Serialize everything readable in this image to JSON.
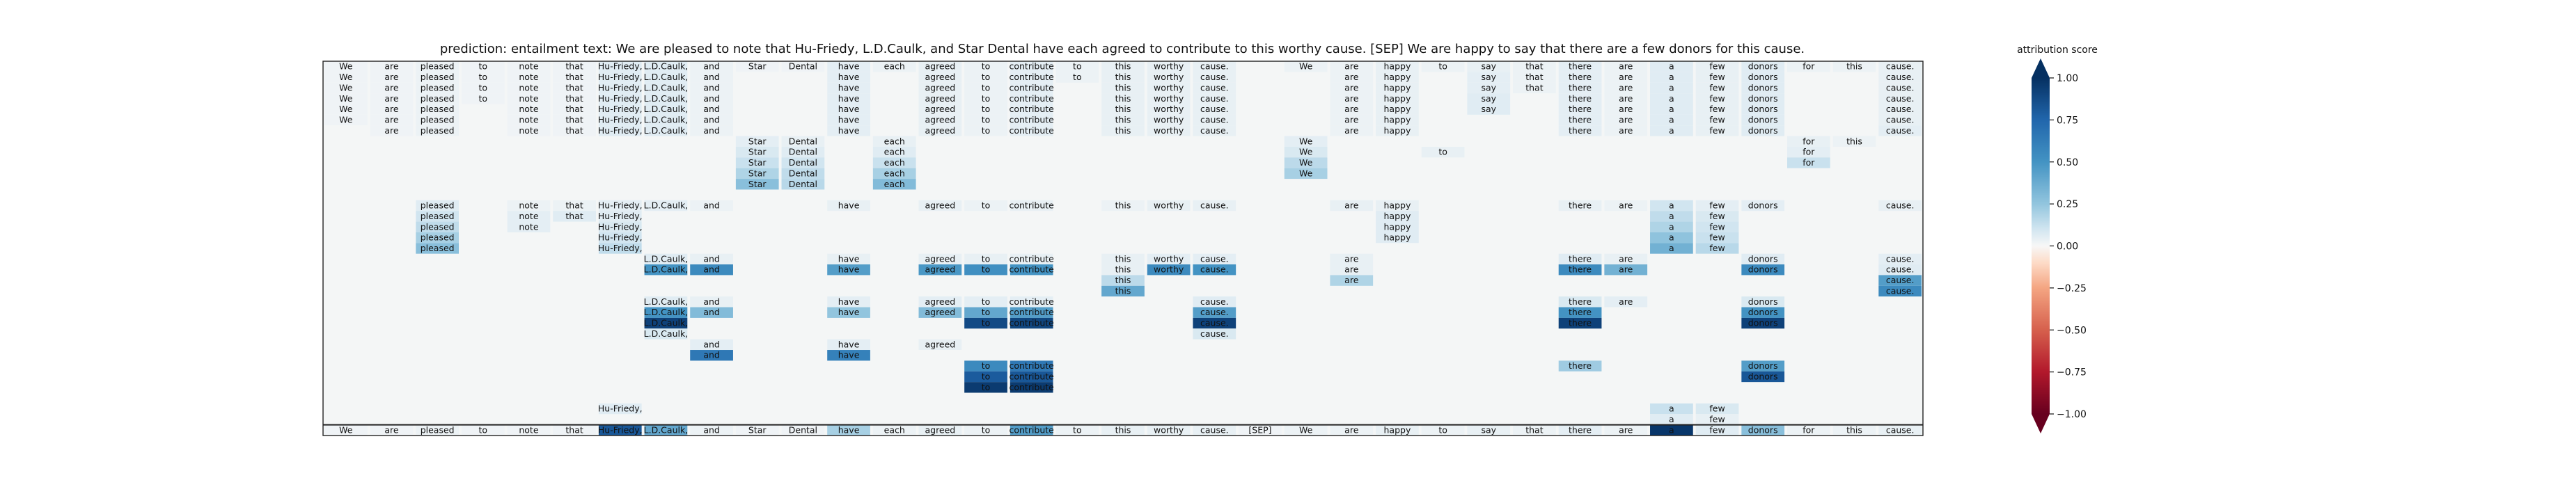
{
  "chart_data": {
    "type": "heatmap",
    "title": "prediction:  entailment     text:  We are pleased to note that Hu-Friedy, L.D.Caulk, and Star Dental have each agreed to contribute to this worthy cause. [SEP] We are happy to say that there are a few donors for this cause.",
    "tokens": [
      "We",
      "are",
      "pleased",
      "to",
      "note",
      "that",
      "Hu-Friedy,",
      "L.D.Caulk,",
      "and",
      "Star",
      "Dental",
      "have",
      "each",
      "agreed",
      "to",
      "contribute",
      "to",
      "this",
      "worthy",
      "cause.",
      "[SEP]",
      "We",
      "are",
      "happy",
      "to",
      "say",
      "that",
      "there",
      "are",
      "a",
      "few",
      "donors",
      "for",
      "this",
      "cause."
    ],
    "rows": [
      {
        "cells": {
          "0": 0.02,
          "1": 0.02,
          "2": 0.03,
          "3": 0.02,
          "4": 0.02,
          "5": 0.02,
          "6": 0.06,
          "7": 0.06,
          "8": 0.03,
          "9": 0.02,
          "10": 0.02,
          "11": 0.05,
          "12": 0.03,
          "13": 0.04,
          "14": 0.03,
          "15": 0.05,
          "16": 0.03,
          "17": 0.04,
          "18": 0.04,
          "19": 0.04,
          "21": 0.03,
          "22": 0.03,
          "23": 0.04,
          "24": 0.03,
          "25": 0.04,
          "26": 0.03,
          "27": 0.05,
          "28": 0.03,
          "29": 0.06,
          "30": 0.04,
          "31": 0.06,
          "32": 0.03,
          "33": 0.03,
          "34": 0.04
        }
      },
      {
        "cells": {
          "0": 0.02,
          "1": 0.02,
          "2": 0.03,
          "3": 0.02,
          "4": 0.02,
          "5": 0.02,
          "6": 0.06,
          "7": 0.06,
          "8": 0.03,
          "11": 0.05,
          "13": 0.04,
          "14": 0.03,
          "15": 0.05,
          "16": 0.03,
          "17": 0.04,
          "18": 0.04,
          "19": 0.04,
          "22": 0.03,
          "23": 0.04,
          "25": 0.05,
          "26": 0.03,
          "27": 0.05,
          "28": 0.03,
          "29": 0.06,
          "30": 0.04,
          "31": 0.06,
          "34": 0.04
        }
      },
      {
        "cells": {
          "0": 0.02,
          "1": 0.02,
          "2": 0.03,
          "3": 0.02,
          "4": 0.02,
          "5": 0.02,
          "6": 0.06,
          "7": 0.06,
          "8": 0.03,
          "11": 0.05,
          "13": 0.04,
          "14": 0.03,
          "15": 0.05,
          "17": 0.04,
          "18": 0.04,
          "19": 0.04,
          "22": 0.03,
          "23": 0.04,
          "25": 0.05,
          "26": 0.03,
          "27": 0.05,
          "28": 0.03,
          "29": 0.06,
          "30": 0.04,
          "31": 0.06,
          "34": 0.04
        }
      },
      {
        "cells": {
          "0": 0.02,
          "1": 0.02,
          "2": 0.03,
          "3": 0.02,
          "4": 0.02,
          "5": 0.02,
          "6": 0.06,
          "7": 0.06,
          "8": 0.03,
          "11": 0.05,
          "13": 0.04,
          "14": 0.03,
          "15": 0.05,
          "17": 0.04,
          "18": 0.04,
          "19": 0.04,
          "22": 0.03,
          "23": 0.04,
          "25": 0.06,
          "27": 0.05,
          "28": 0.03,
          "29": 0.06,
          "30": 0.04,
          "31": 0.06,
          "34": 0.04
        }
      },
      {
        "cells": {
          "0": 0.02,
          "1": 0.02,
          "2": 0.03,
          "4": 0.02,
          "5": 0.02,
          "6": 0.06,
          "7": 0.06,
          "8": 0.03,
          "11": 0.05,
          "13": 0.04,
          "14": 0.03,
          "15": 0.05,
          "17": 0.04,
          "18": 0.04,
          "19": 0.04,
          "22": 0.03,
          "23": 0.04,
          "25": 0.06,
          "27": 0.05,
          "28": 0.03,
          "29": 0.06,
          "30": 0.04,
          "31": 0.06,
          "34": 0.04
        }
      },
      {
        "cells": {
          "0": 0.02,
          "1": 0.02,
          "2": 0.03,
          "4": 0.02,
          "5": 0.02,
          "6": 0.06,
          "7": 0.06,
          "8": 0.03,
          "11": 0.05,
          "13": 0.04,
          "14": 0.03,
          "15": 0.05,
          "17": 0.04,
          "18": 0.04,
          "19": 0.04,
          "22": 0.03,
          "23": 0.04,
          "27": 0.05,
          "28": 0.03,
          "29": 0.06,
          "30": 0.04,
          "31": 0.06,
          "34": 0.04
        }
      },
      {
        "cells": {
          "1": 0.02,
          "2": 0.03,
          "4": 0.02,
          "5": 0.02,
          "6": 0.06,
          "7": 0.06,
          "8": 0.03,
          "11": 0.05,
          "13": 0.04,
          "14": 0.03,
          "15": 0.05,
          "17": 0.04,
          "18": 0.04,
          "19": 0.04,
          "22": 0.03,
          "23": 0.04,
          "27": 0.05,
          "28": 0.03,
          "29": 0.06,
          "30": 0.04,
          "31": 0.06,
          "34": 0.05
        }
      },
      {
        "cells": {
          "9": 0.05,
          "10": 0.04,
          "12": 0.04,
          "21": 0.05,
          "32": 0.04,
          "33": 0.03
        }
      },
      {
        "cells": {
          "9": 0.08,
          "10": 0.06,
          "12": 0.06,
          "21": 0.08,
          "24": 0.04,
          "32": 0.05
        }
      },
      {
        "cells": {
          "9": 0.12,
          "10": 0.1,
          "12": 0.12,
          "21": 0.15,
          "32": 0.12
        }
      },
      {
        "cells": {
          "9": 0.18,
          "10": 0.14,
          "12": 0.2,
          "21": 0.2
        }
      },
      {
        "cells": {
          "9": 0.28,
          "10": 0.16,
          "12": 0.3
        }
      },
      {
        "cells": {}
      },
      {
        "cells": {
          "2": 0.06,
          "4": 0.03,
          "5": 0.03,
          "6": 0.05,
          "7": 0.05,
          "8": 0.03,
          "11": 0.04,
          "13": 0.04,
          "14": 0.03,
          "15": 0.04,
          "17": 0.03,
          "18": 0.04,
          "19": 0.04,
          "22": 0.04,
          "23": 0.04,
          "27": 0.04,
          "28": 0.03,
          "29": 0.1,
          "30": 0.05,
          "31": 0.05,
          "34": 0.04
        }
      },
      {
        "cells": {
          "2": 0.1,
          "4": 0.05,
          "5": 0.06,
          "6": 0.06,
          "23": 0.06,
          "29": 0.14,
          "30": 0.08
        }
      },
      {
        "cells": {
          "2": 0.14,
          "4": 0.05,
          "6": 0.08,
          "23": 0.06,
          "29": 0.18,
          "30": 0.1
        }
      },
      {
        "cells": {
          "2": 0.2,
          "6": 0.1,
          "23": 0.06,
          "29": 0.26,
          "30": 0.12
        }
      },
      {
        "cells": {
          "2": 0.28,
          "6": 0.14,
          "29": 0.35,
          "30": 0.16
        }
      },
      {
        "cells": {
          "7": 0.06,
          "8": 0.04,
          "11": 0.04,
          "13": 0.04,
          "14": 0.04,
          "15": 0.04,
          "17": 0.04,
          "18": 0.05,
          "19": 0.05,
          "22": 0.04,
          "27": 0.06,
          "28": 0.04,
          "31": 0.06,
          "34": 0.05
        }
      },
      {
        "cells": {
          "7": 0.5,
          "8": 0.55,
          "11": 0.45,
          "13": 0.48,
          "14": 0.52,
          "15": 0.5,
          "17": 0.04,
          "18": 0.55,
          "19": 0.5,
          "22": 0.04,
          "27": 0.55,
          "28": 0.35,
          "31": 0.55,
          "34": 0.06
        }
      },
      {
        "cells": {
          "17": 0.15,
          "22": 0.18,
          "34": 0.45
        }
      },
      {
        "cells": {
          "17": 0.4,
          "34": 0.55
        }
      },
      {
        "cells": {
          "7": 0.06,
          "8": 0.04,
          "11": 0.05,
          "13": 0.05,
          "14": 0.05,
          "15": 0.05,
          "19": 0.06,
          "27": 0.08,
          "28": 0.05,
          "31": 0.08
        }
      },
      {
        "cells": {
          "7": 0.5,
          "8": 0.3,
          "11": 0.25,
          "13": 0.3,
          "14": 0.4,
          "15": 0.45,
          "19": 0.45,
          "27": 0.5,
          "31": 0.5
        }
      },
      {
        "cells": {
          "7": 0.92,
          "14": 0.88,
          "15": 0.9,
          "19": 0.92,
          "27": 0.92,
          "31": 0.92
        }
      },
      {
        "cells": {
          "7": 0.08,
          "19": 0.08
        }
      },
      {
        "cells": {
          "8": 0.05,
          "11": 0.05,
          "13": 0.04
        }
      },
      {
        "cells": {
          "8": 0.65,
          "11": 0.6
        }
      },
      {
        "cells": {
          "14": 0.55,
          "15": 0.65,
          "27": 0.22,
          "31": 0.45
        }
      },
      {
        "cells": {
          "14": 0.8,
          "15": 0.82,
          "31": 0.82
        }
      },
      {
        "cells": {
          "14": 0.95,
          "15": 0.95
        }
      },
      {
        "cells": {}
      },
      {
        "cells": {
          "6": 0.06,
          "29": 0.12,
          "30": 0.08
        }
      },
      {
        "cells": {
          "29": 0.06,
          "30": 0.04
        }
      },
      {
        "cells": {
          "0": 0.02,
          "1": 0.02,
          "2": 0.03,
          "3": 0.02,
          "4": 0.02,
          "5": 0.02,
          "6": 0.82,
          "7": 0.4,
          "8": 0.03,
          "9": 0.02,
          "10": 0.02,
          "11": 0.2,
          "12": 0.03,
          "13": 0.04,
          "14": 0.03,
          "15": 0.45,
          "16": 0.03,
          "17": 0.04,
          "18": 0.04,
          "19": 0.04,
          "20": 0.02,
          "21": 0.03,
          "22": 0.03,
          "23": 0.04,
          "24": 0.03,
          "25": 0.04,
          "26": 0.03,
          "27": 0.05,
          "28": 0.03,
          "29": 0.97,
          "30": 0.06,
          "31": 0.28,
          "32": 0.03,
          "33": 0.03,
          "34": 0.04
        }
      }
    ],
    "colorbar": {
      "label": "attribution score",
      "ticks": [
        "1.00",
        "0.75",
        "0.50",
        "0.25",
        "0.00",
        "−0.25",
        "−0.50",
        "−0.75",
        "−1.00"
      ],
      "range": [
        -1,
        1
      ],
      "colormap": "RdBu"
    },
    "background_color": "#f4f6f6"
  }
}
